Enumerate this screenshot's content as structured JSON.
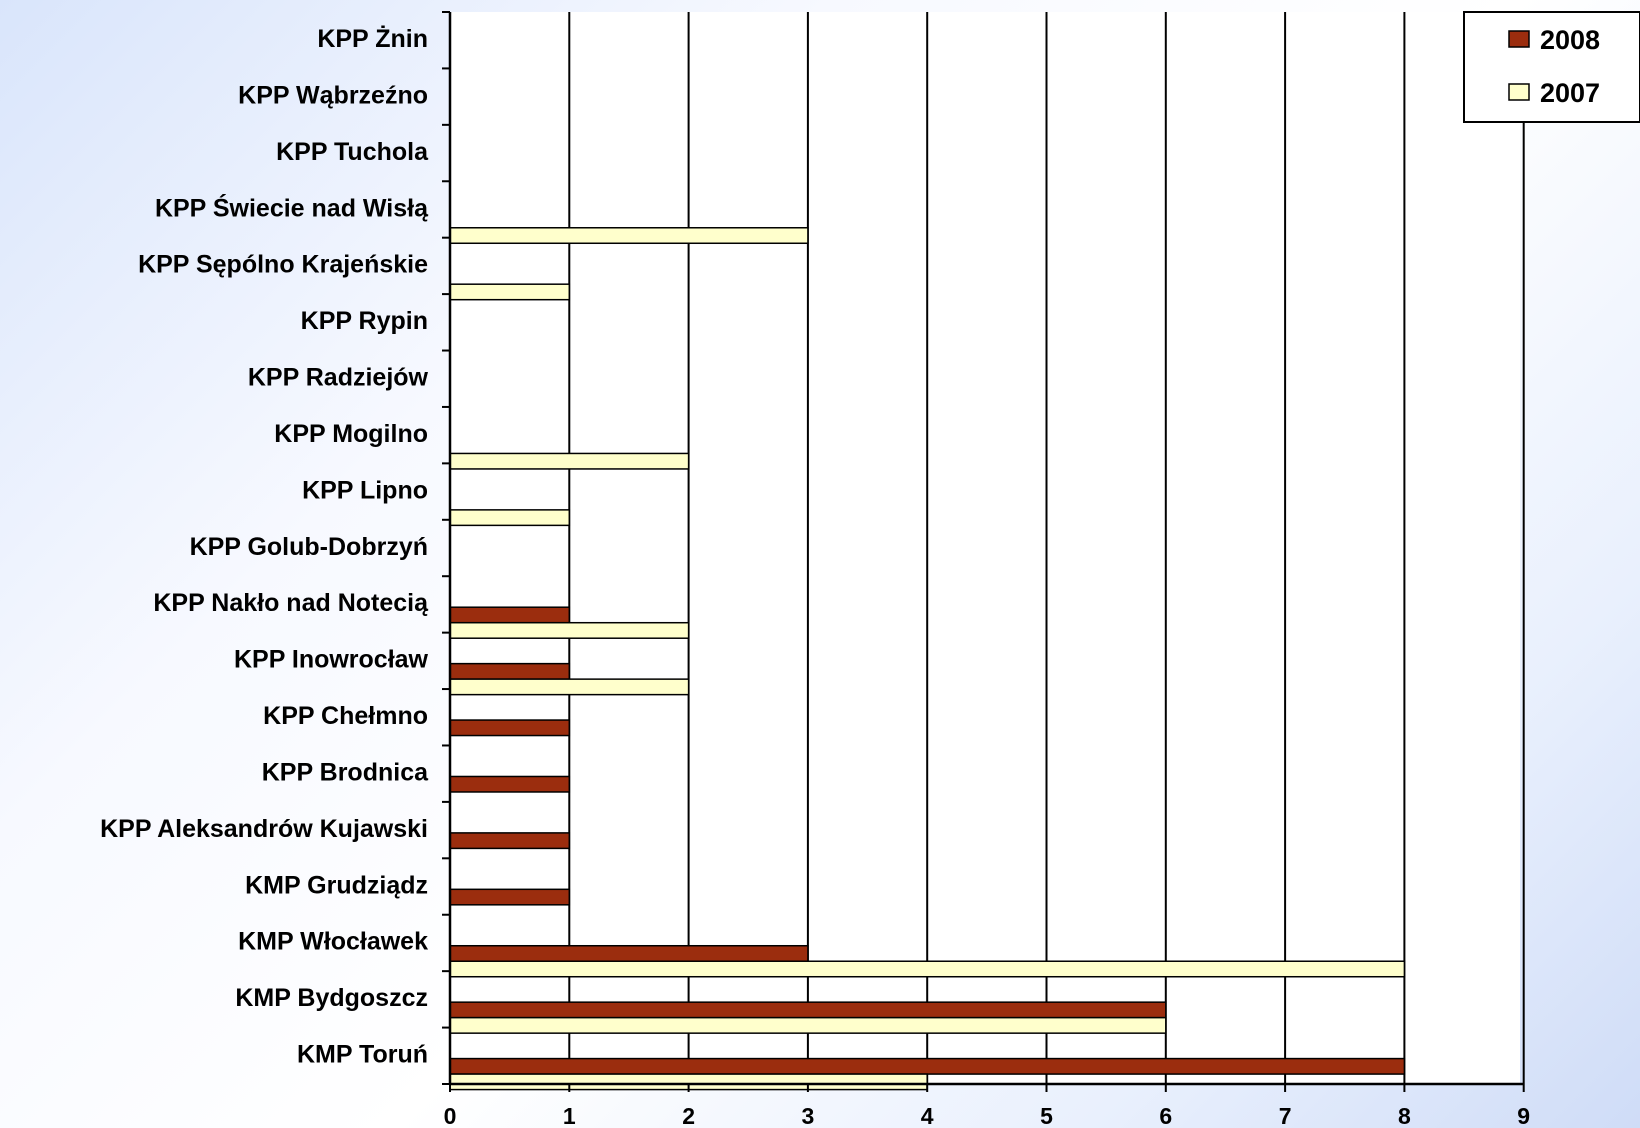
{
  "chart_data": {
    "type": "bar",
    "orientation": "horizontal",
    "categories": [
      "KPP Żnin",
      "KPP Wąbrzeźno",
      "KPP Tuchola",
      "KPP Świecie nad Wisłą",
      "KPP Sępólno Krajeńskie",
      "KPP Rypin",
      "KPP Radziejów",
      "KPP Mogilno",
      "KPP Lipno",
      "KPP Golub-Dobrzyń",
      "KPP Nakło nad Notecią",
      "KPP Inowrocław",
      "KPP Chełmno",
      "KPP Brodnica",
      "KPP Aleksandrów Kujawski",
      "KMP Grudziądz",
      "KMP Włocławek",
      "KMP Bydgoszcz",
      "KMP Toruń"
    ],
    "series": [
      {
        "name": "2008",
        "color": "#9b2d0e",
        "values": [
          0,
          0,
          0,
          0,
          0,
          0,
          0,
          0,
          0,
          0,
          1,
          1,
          1,
          1,
          1,
          1,
          3,
          6,
          8
        ]
      },
      {
        "name": "2007",
        "color": "#ffffcc",
        "values": [
          0,
          0,
          0,
          3,
          1,
          0,
          0,
          2,
          1,
          0,
          2,
          2,
          0,
          0,
          0,
          0,
          8,
          6,
          4
        ]
      }
    ],
    "xlim": [
      0,
      9
    ],
    "xticks": [
      "0",
      "1",
      "2",
      "3",
      "4",
      "5",
      "6",
      "7",
      "8",
      "9"
    ],
    "grid": true,
    "legend_position": "top-right"
  }
}
